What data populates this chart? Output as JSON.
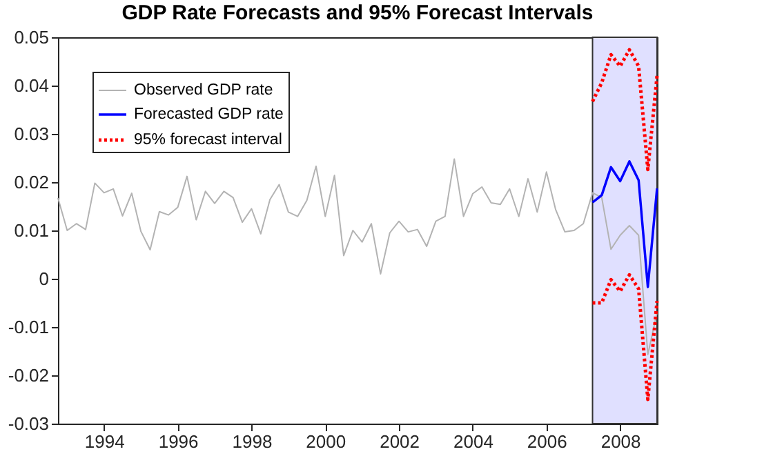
{
  "chart_data": {
    "type": "line",
    "title": "GDP Rate Forecasts and 95% Forecast Intervals",
    "xlim": [
      1992.75,
      2009
    ],
    "xticks": [
      1994,
      1996,
      1998,
      2000,
      2002,
      2004,
      2006,
      2008
    ],
    "ylim": [
      -0.03,
      0.05
    ],
    "yticks": [
      -0.03,
      -0.02,
      -0.01,
      0,
      0.01,
      0.02,
      0.03,
      0.04,
      0.05
    ],
    "grid": false,
    "legend": "top left",
    "marker": "none",
    "bands": [
      {
        "axis": "x",
        "from": 2007.25,
        "to": 2009,
        "color": "#e0e0ff"
      }
    ],
    "series": [
      {
        "name": "Observed GDP rate",
        "color": "#b3b3b3",
        "line_style": "solid",
        "x": [
          1992.75,
          1993,
          1993.25,
          1993.5,
          1993.75,
          1994,
          1994.25,
          1994.5,
          1994.75,
          1995,
          1995.25,
          1995.5,
          1995.75,
          1996,
          1996.25,
          1996.5,
          1996.75,
          1997,
          1997.25,
          1997.5,
          1997.75,
          1998,
          1998.25,
          1998.5,
          1998.75,
          1999,
          1999.25,
          1999.5,
          1999.75,
          2000,
          2000.25,
          2000.5,
          2000.75,
          2001,
          2001.25,
          2001.5,
          2001.75,
          2002,
          2002.25,
          2002.5,
          2002.75,
          2003,
          2003.25,
          2003.5,
          2003.75,
          2004,
          2004.25,
          2004.5,
          2004.75,
          2005,
          2005.25,
          2005.5,
          2005.75,
          2006,
          2006.25,
          2006.5,
          2006.75,
          2007,
          2007.25,
          2007.5,
          2007.75,
          2008,
          2008.25,
          2008.5,
          2008.75,
          2009
        ],
        "values": [
          0.0167,
          0.01,
          0.0114,
          0.0102,
          0.0198,
          0.0178,
          0.0186,
          0.013,
          0.0177,
          0.0098,
          0.006,
          0.0139,
          0.0132,
          0.0148,
          0.0212,
          0.0122,
          0.0181,
          0.0156,
          0.0181,
          0.0168,
          0.0117,
          0.0145,
          0.0093,
          0.0164,
          0.0195,
          0.0138,
          0.0129,
          0.0162,
          0.0233,
          0.0129,
          0.0214,
          0.0048,
          0.01,
          0.0076,
          0.0114,
          0.001,
          0.0095,
          0.0119,
          0.0097,
          0.0102,
          0.0067,
          0.0119,
          0.0129,
          0.0248,
          0.0129,
          0.0176,
          0.019,
          0.0157,
          0.0154,
          0.0186,
          0.0129,
          0.0207,
          0.0138,
          0.0221,
          0.0143,
          0.0097,
          0.01,
          0.0114,
          0.0178,
          0.0168,
          0.0061,
          0.009,
          0.011,
          0.009,
          -0.0157,
          -0.007
        ]
      },
      {
        "name": "Forecasted GDP rate",
        "color": "#0000ff",
        "line_style": "solid",
        "x": [
          2007.25,
          2007.5,
          2007.75,
          2008,
          2008.25,
          2008.5,
          2008.75,
          2009
        ],
        "values": [
          0.0158,
          0.0173,
          0.0231,
          0.0202,
          0.0243,
          0.0204,
          -0.0017,
          0.0187
        ]
      },
      {
        "name": "95% forecast interval",
        "color": "#ff0000",
        "line_style": "dotted",
        "x": [
          2007.25,
          2007.5,
          2007.75,
          2008,
          2008.25,
          2008.5,
          2008.75,
          2009
        ],
        "values": [
          0.0367,
          0.0406,
          0.0464,
          0.044,
          0.0474,
          0.044,
          0.0226,
          0.042
        ]
      },
      {
        "color": "#ff0000",
        "line_style": "dotted",
        "x": [
          2007.25,
          2007.5,
          2007.75,
          2008,
          2008.25,
          2008.5,
          2008.75,
          2009
        ],
        "values": [
          -0.005,
          -0.005,
          -0.0002,
          -0.0026,
          0.0008,
          -0.0021,
          -0.025,
          -0.0046
        ]
      }
    ]
  }
}
